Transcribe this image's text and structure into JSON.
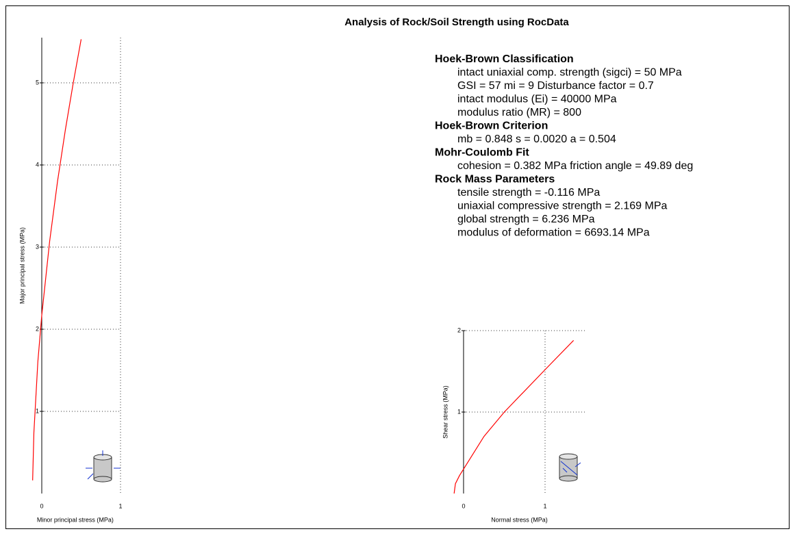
{
  "title": "Analysis of Rock/Soil Strength using RocData",
  "panel": {
    "sections": [
      {
        "heading": "Hoek-Brown Classification",
        "lines": [
          "intact uniaxial comp. strength (sigci) = 50 MPa",
          "GSI = 57   mi = 9    Disturbance factor = 0.7",
          "intact modulus (Ei) = 40000 MPa",
          "modulus ratio (MR) = 800"
        ]
      },
      {
        "heading": "Hoek-Brown Criterion",
        "lines": [
          "mb = 0.848    s = 0.0020   a = 0.504"
        ]
      },
      {
        "heading": "Mohr-Coulomb Fit",
        "lines": [
          "cohesion = 0.382 MPa  friction angle = 49.89 deg"
        ]
      },
      {
        "heading": "Rock Mass Parameters",
        "lines": [
          "tensile strength = -0.116 MPa",
          "uniaxial compressive strength = 2.169 MPa",
          "global strength = 6.236 MPa",
          "modulus of deformation = 6693.14 MPa"
        ]
      }
    ]
  },
  "chart_data": [
    {
      "type": "line",
      "x_label": "Minor principal stress (MPa)",
      "y_label": "Major principal stress (MPa)",
      "x": [
        -0.116,
        -0.1,
        -0.05,
        0,
        0.1,
        0.2,
        0.3,
        0.4,
        0.5
      ],
      "values": [
        0.16,
        0.744,
        1.602,
        2.17,
        3.07,
        3.8,
        4.43,
        5.0,
        5.53
      ],
      "color": "#ff0000",
      "xlim": [
        -0.15,
        1
      ],
      "ylim": [
        0,
        5.55
      ],
      "xticks": [
        0,
        1
      ],
      "yticks": [
        1,
        2,
        3,
        4,
        5
      ],
      "grid": true
    },
    {
      "type": "line",
      "x_label": "Normal stress (MPa)",
      "y_label": "Shear stress (MPa)",
      "x": [
        -0.116,
        -0.1,
        -0.05,
        0,
        0.25,
        0.5,
        1.0,
        1.35
      ],
      "values": [
        0,
        0.12,
        0.22,
        0.3,
        0.7,
        1.0,
        1.52,
        1.88
      ],
      "color": "#ff0000",
      "xlim": [
        -0.13,
        1.5
      ],
      "ylim": [
        0,
        2
      ],
      "xticks": [
        0,
        1
      ],
      "yticks": [
        1,
        2
      ],
      "grid": true
    }
  ]
}
